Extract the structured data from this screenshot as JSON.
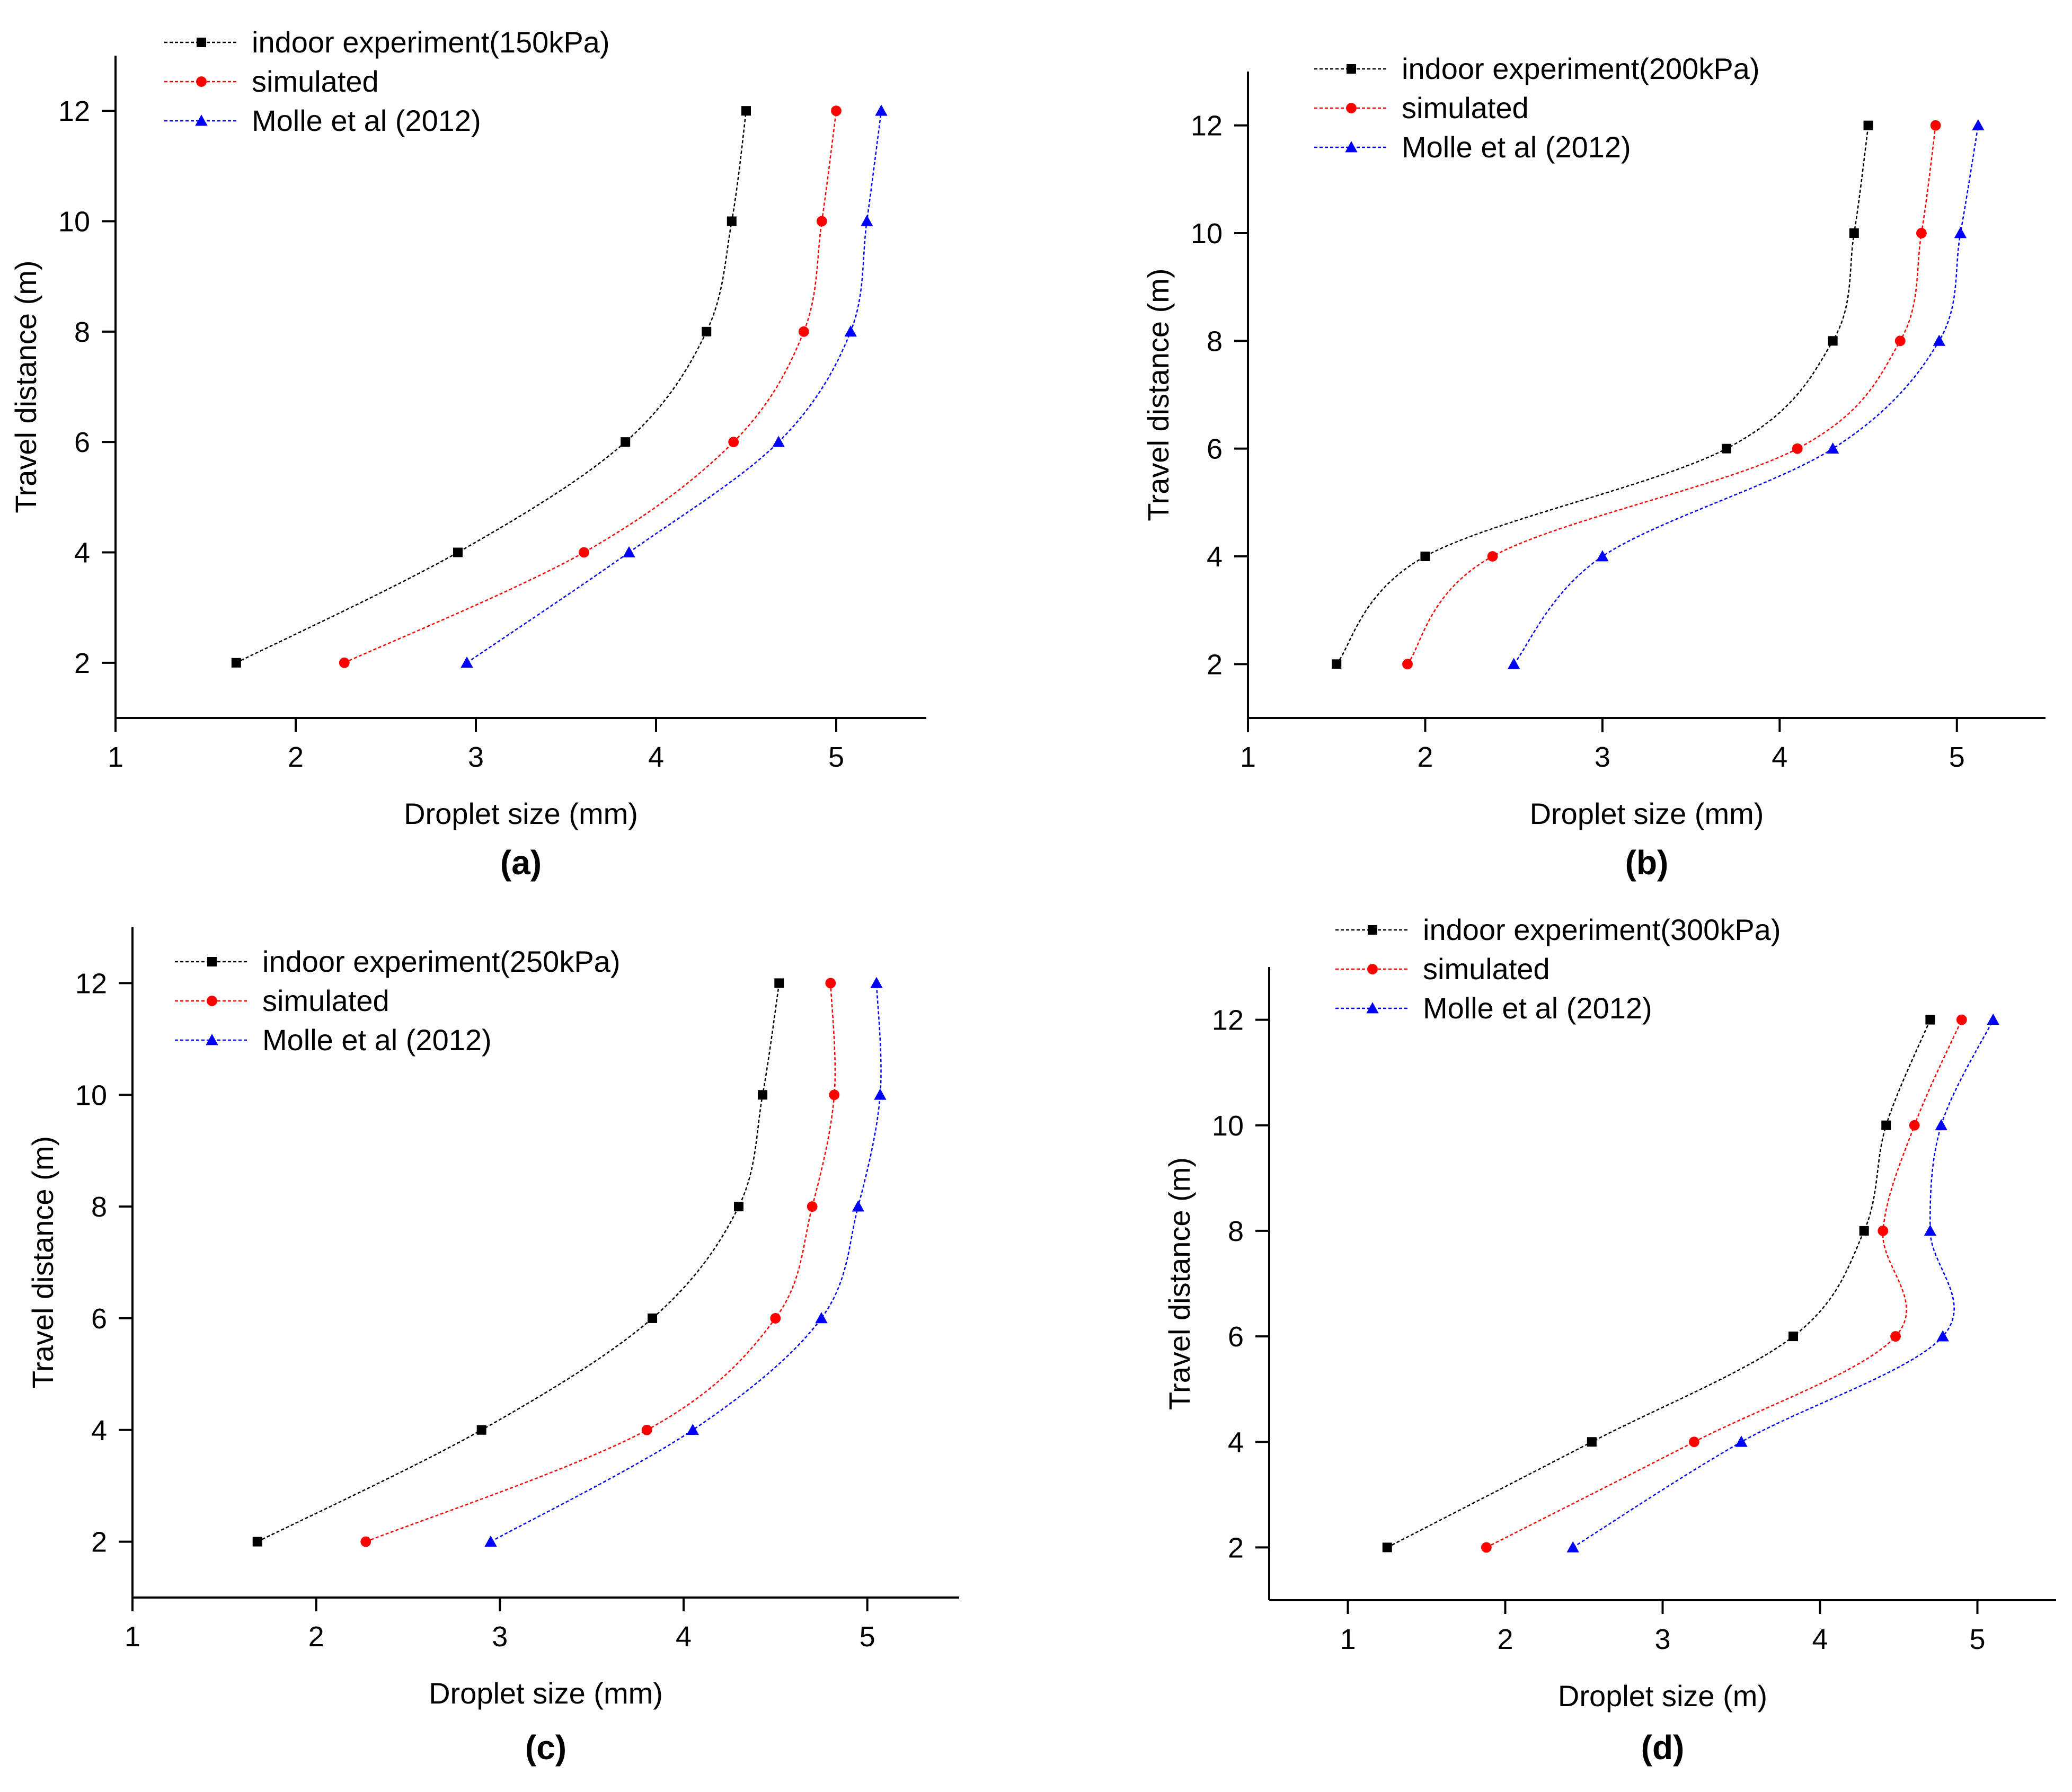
{
  "colors": {
    "experiment": "#000000",
    "simulated": "#ff0000",
    "molle": "#0000ff",
    "axis": "#000000"
  },
  "chart_data": [
    {
      "type": "line",
      "panel_label": "(a)",
      "title": "",
      "xlabel": "Droplet size (mm)",
      "ylabel": "Travel distance (m)",
      "xlim": [
        1,
        5.5
      ],
      "ylim": [
        1,
        13
      ],
      "xticks": [
        1,
        2,
        3,
        4,
        5
      ],
      "yticks": [
        2,
        4,
        6,
        8,
        10,
        12
      ],
      "legend_position": "top-left",
      "series": [
        {
          "name": "indoor experiment(150kPa)",
          "marker": "square",
          "color": "#000000",
          "x": [
            1.67,
            2.9,
            3.83,
            4.28,
            4.42,
            4.5
          ],
          "y": [
            2,
            4,
            6,
            8,
            10,
            12
          ]
        },
        {
          "name": "simulated",
          "marker": "circle",
          "color": "#ff0000",
          "x": [
            2.27,
            3.6,
            4.43,
            4.82,
            4.92,
            5.0
          ],
          "y": [
            2,
            4,
            6,
            8,
            10,
            12
          ]
        },
        {
          "name": "Molle et al (2012)",
          "marker": "triangle",
          "color": "#0000ff",
          "x": [
            2.95,
            3.85,
            4.68,
            5.08,
            5.17,
            5.25
          ],
          "y": [
            2,
            4,
            6,
            8,
            10,
            12
          ]
        }
      ]
    },
    {
      "type": "line",
      "panel_label": "(b)",
      "title": "",
      "xlabel": "Droplet size (mm)",
      "ylabel": "Travel distance (m)",
      "xlim": [
        1,
        5.5
      ],
      "ylim": [
        1,
        13
      ],
      "xticks": [
        1,
        2,
        3,
        4,
        5
      ],
      "yticks": [
        2,
        4,
        6,
        8,
        10,
        12
      ],
      "legend_position": "top-left",
      "series": [
        {
          "name": "indoor experiment(200kPa)",
          "marker": "square",
          "color": "#000000",
          "x": [
            1.5,
            2.0,
            3.7,
            4.3,
            4.42,
            4.5
          ],
          "y": [
            2,
            4,
            6,
            8,
            10,
            12
          ]
        },
        {
          "name": "simulated",
          "marker": "circle",
          "color": "#ff0000",
          "x": [
            1.9,
            2.38,
            4.1,
            4.68,
            4.8,
            4.88
          ],
          "y": [
            2,
            4,
            6,
            8,
            10,
            12
          ]
        },
        {
          "name": "Molle et al (2012)",
          "marker": "triangle",
          "color": "#0000ff",
          "x": [
            2.5,
            3.0,
            4.3,
            4.9,
            5.02,
            5.12
          ],
          "y": [
            2,
            4,
            6,
            8,
            10,
            12
          ]
        }
      ]
    },
    {
      "type": "line",
      "panel_label": "(c)",
      "title": "",
      "xlabel": "Droplet size (mm)",
      "ylabel": "Travel distance (m)",
      "xlim": [
        1,
        5.5
      ],
      "ylim": [
        1,
        13
      ],
      "xticks": [
        1,
        2,
        3,
        4,
        5
      ],
      "yticks": [
        2,
        4,
        6,
        8,
        10,
        12
      ],
      "legend_position": "top-left",
      "series": [
        {
          "name": "indoor experiment(250kPa)",
          "marker": "square",
          "color": "#000000",
          "x": [
            1.68,
            2.9,
            3.83,
            4.3,
            4.43,
            4.52
          ],
          "y": [
            2,
            4,
            6,
            8,
            10,
            12
          ]
        },
        {
          "name": "simulated",
          "marker": "circle",
          "color": "#ff0000",
          "x": [
            2.27,
            3.8,
            4.5,
            4.7,
            4.82,
            4.8
          ],
          "y": [
            2,
            4,
            6,
            8,
            10,
            12
          ]
        },
        {
          "name": "Molle et al (2012)",
          "marker": "triangle",
          "color": "#0000ff",
          "x": [
            2.95,
            4.05,
            4.75,
            4.95,
            5.07,
            5.05
          ],
          "y": [
            2,
            4,
            6,
            8,
            10,
            12
          ]
        }
      ]
    },
    {
      "type": "line",
      "panel_label": "(d)",
      "title": "",
      "xlabel": "Droplet size (m)",
      "ylabel": "Travel distance (m)",
      "xlim": [
        0.5,
        5.5
      ],
      "ylim": [
        1,
        13
      ],
      "xticks": [
        1,
        2,
        3,
        4,
        5
      ],
      "yticks": [
        2,
        4,
        6,
        8,
        10,
        12
      ],
      "legend_position": "top-left",
      "series": [
        {
          "name": "indoor experiment(300kPa)",
          "marker": "square",
          "color": "#000000",
          "x": [
            1.25,
            2.55,
            3.83,
            4.28,
            4.42,
            4.7
          ],
          "y": [
            2,
            4,
            6,
            8,
            10,
            12
          ]
        },
        {
          "name": "simulated",
          "marker": "circle",
          "color": "#ff0000",
          "x": [
            1.88,
            3.2,
            4.48,
            4.4,
            4.6,
            4.9
          ],
          "y": [
            2,
            4,
            6,
            8,
            10,
            12
          ]
        },
        {
          "name": "Molle et al (2012)",
          "marker": "triangle",
          "color": "#0000ff",
          "x": [
            2.43,
            3.5,
            4.78,
            4.7,
            4.77,
            5.1
          ],
          "y": [
            2,
            4,
            6,
            8,
            10,
            12
          ]
        }
      ]
    }
  ]
}
